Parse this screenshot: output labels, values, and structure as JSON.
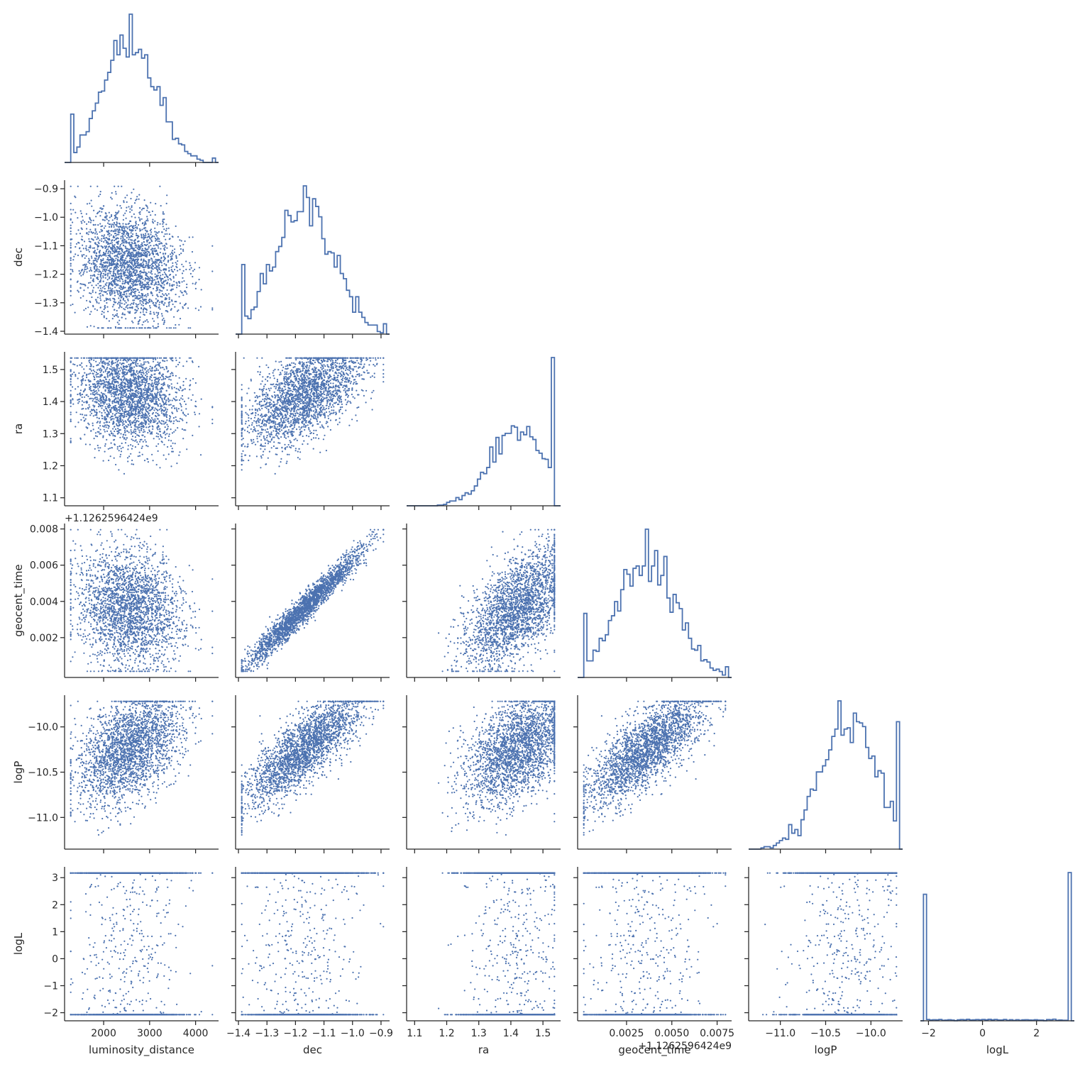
{
  "chart_data": {
    "type": "corner",
    "series_color": "#4c72b0",
    "variables": [
      {
        "name": "luminosity_distance",
        "label": "luminosity_distance",
        "range": [
          1150,
          4500
        ],
        "ticks": [
          2000,
          3000,
          4000
        ],
        "tick_labels": [
          "2000",
          "3000",
          "4000"
        ],
        "mean": 2550,
        "sd": 560
      },
      {
        "name": "dec",
        "label": "dec",
        "range": [
          -1.41,
          -0.87
        ],
        "ticks": [
          -1.4,
          -1.3,
          -1.2,
          -1.1,
          -1.0,
          -0.9
        ],
        "tick_labels": [
          "−1.4",
          "−1.3",
          "−1.2",
          "−1.1",
          "−1.0",
          "−0.9"
        ],
        "mean": -1.17,
        "sd": 0.1
      },
      {
        "name": "ra",
        "label": "ra",
        "range": [
          1.075,
          1.555
        ],
        "ticks": [
          1.1,
          1.2,
          1.3,
          1.4,
          1.5
        ],
        "tick_labels": [
          "1.1",
          "1.2",
          "1.3",
          "1.4",
          "1.5"
        ],
        "mean": 1.42,
        "sd": 0.08
      },
      {
        "name": "geocent_time",
        "label": "geocent_time",
        "range": [
          -0.0002,
          0.0083
        ],
        "ticks": [
          0.002,
          0.004,
          0.006,
          0.008
        ],
        "tick_labels": [
          "0.002",
          "0.004",
          "0.006",
          "0.008"
        ],
        "x_ticks": [
          0.0025,
          0.005,
          0.0075
        ],
        "x_tick_labels": [
          "0.0025",
          "0.0050",
          "0.0075"
        ],
        "offset_text": "+1.1262596424e9",
        "mean": 0.0036,
        "sd": 0.0016
      },
      {
        "name": "logP",
        "label": "logP",
        "range": [
          -11.35,
          -9.65
        ],
        "ticks": [
          -11.0,
          -10.5,
          -10.0
        ],
        "tick_labels": [
          "−11.0",
          "−10.5",
          "−10.0"
        ],
        "mean": -10.25,
        "sd": 0.3
      },
      {
        "name": "logL",
        "label": "logL",
        "range": [
          -2.3,
          3.4
        ],
        "ticks": [
          -2,
          -1,
          0,
          1,
          2,
          3
        ],
        "tick_labels": [
          "−2",
          "−1",
          "0",
          "1",
          "2",
          "3"
        ],
        "x_ticks": [
          -2,
          0,
          2
        ],
        "x_tick_labels": [
          "−2",
          "0",
          "2"
        ],
        "mean": 1.6,
        "sd": 0.9
      }
    ],
    "diagonal": "step-histogram",
    "off_diagonal": "scatter",
    "legend": "none",
    "grid": false
  }
}
